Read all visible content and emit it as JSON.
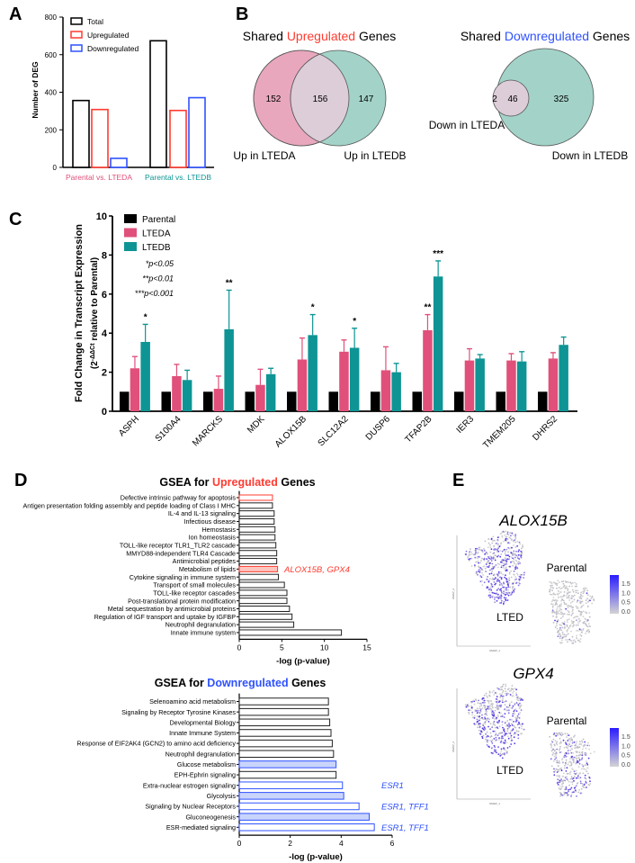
{
  "colors": {
    "red": "#ff3b30",
    "blue": "#2f52ff",
    "pink": "#e0507a",
    "teal": "#0e9494",
    "venn_pink": "#e8a7bd",
    "venn_teal": "#a3d3c8",
    "venn_overlap": "#dccdd8",
    "purple": "#5a3ee0",
    "gray": "#cfcfcf"
  },
  "panel_labels": [
    "A",
    "B",
    "C",
    "D",
    "E"
  ],
  "chart_data": [
    {
      "id": "A",
      "type": "bar",
      "title": "",
      "xlabel": "",
      "ylabel": "Number of DEG",
      "ylim": [
        0,
        800
      ],
      "yticks": [
        "0",
        "200",
        "400",
        "600",
        "800"
      ],
      "categories": [
        "Parental vs. LTEDA",
        "Parental vs. LTEDB"
      ],
      "series": [
        {
          "name": "Total",
          "values": [
            356,
            674
          ]
        },
        {
          "name": "Upregulated",
          "values": [
            308,
            303
          ]
        },
        {
          "name": "Downregulated",
          "values": [
            48,
            371
          ]
        }
      ]
    },
    {
      "id": "B",
      "type": "venn",
      "venns": [
        {
          "title_pre": "Shared ",
          "title_hl": "Upregulated",
          "title_post": " Genes",
          "set_a": "Up in LTEDA",
          "set_b": "Up in LTEDB",
          "only_a": "152",
          "both": "156",
          "only_b": "147"
        },
        {
          "title_pre": "Shared ",
          "title_hl": "Downregulated",
          "title_post": " Genes",
          "set_a": "Down in LTEDA",
          "set_b": "Down in LTEDB",
          "only_a": "2",
          "both": "46",
          "only_b": "325"
        }
      ]
    },
    {
      "id": "C",
      "type": "bar",
      "ylim": [
        0,
        10
      ],
      "yticks": [
        "0",
        "2",
        "4",
        "6",
        "8",
        "10"
      ],
      "ylabel": "Fold Change in Transcript Expression",
      "ylabel2_pre": "(2",
      "ylabel2_sup": "-ΔΔCt",
      "ylabel2_post": " relative to Parental)",
      "legend": [
        "Parental",
        "LTEDA",
        "LTEDB"
      ],
      "pnotes": [
        "*p<0.05",
        "**p<0.01",
        "***p<0.001"
      ],
      "categories": [
        "ASPH",
        "S100A4",
        "MARCKS",
        "MDK",
        "ALOX15B",
        "SLC12A2",
        "DUSP6",
        "TFAP2B",
        "IER3",
        "TMEM205",
        "DHRS2"
      ],
      "series": [
        {
          "name": "Parental",
          "values": [
            1,
            1,
            1,
            1,
            1,
            1,
            1,
            1,
            1,
            1,
            1
          ],
          "error": [
            0,
            0,
            0,
            0,
            0,
            0,
            0,
            0,
            0,
            0,
            0
          ],
          "sig": [
            "",
            "",
            "",
            "",
            "",
            "",
            "",
            "",
            "",
            "",
            ""
          ]
        },
        {
          "name": "LTEDA",
          "values": [
            2.2,
            1.8,
            1.15,
            1.35,
            2.65,
            3.05,
            2.1,
            4.15,
            2.6,
            2.6,
            2.7
          ],
          "error": [
            0.6,
            0.6,
            0.65,
            0.8,
            1.1,
            0.6,
            1.2,
            0.8,
            0.6,
            0.35,
            0.3
          ],
          "sig": [
            "",
            "",
            "",
            "",
            "",
            "",
            "",
            "**",
            "",
            "",
            ""
          ]
        },
        {
          "name": "LTEDB",
          "values": [
            3.55,
            1.6,
            4.2,
            1.9,
            3.9,
            3.25,
            2.0,
            6.9,
            2.7,
            2.55,
            3.4
          ],
          "error": [
            0.9,
            0.5,
            2.0,
            0.3,
            1.05,
            1.0,
            0.45,
            0.8,
            0.2,
            0.5,
            0.4
          ],
          "sig": [
            "*",
            "",
            "**",
            "",
            "*",
            "*",
            "",
            "***",
            "",
            "",
            ""
          ]
        }
      ]
    },
    {
      "id": "D-up",
      "type": "bar",
      "orientation": "horizontal",
      "title_pre": "GSEA for ",
      "title_hl": "Upregulated",
      "title_post": " Genes",
      "xlim": [
        0,
        15
      ],
      "xticks": [
        "0",
        "5",
        "10",
        "15"
      ],
      "xlabel": "-log (p-value)",
      "categories": [
        "Defective intrinsic pathway for apoptosis",
        "Antigen presentation folding assembly and peptide loading of Class I MHC",
        "IL-4 and IL-13 signaling",
        "Infectious disease",
        "Hemostasis",
        "Ion homeostasis",
        "TOLL-like receptor TLR1_TLR2 cascade",
        "MMYD88-independent TLR4 Cascade",
        "Antimicrobial peptides",
        "Metabolism of lipids",
        "Cytokine signaling in immune system",
        "Transport of small molecules",
        "TOLL-like receptor cascades",
        "Post-translational protein modification",
        "Metal sequestration by antimicrobial proteins",
        "Regulation of IGF transport and uptake by IGFBP",
        "Neutrophil degranulation",
        "Innate immune system"
      ],
      "values": [
        3.9,
        3.9,
        4.1,
        4.1,
        4.2,
        4.2,
        4.3,
        4.4,
        4.4,
        4.5,
        4.6,
        5.3,
        5.6,
        5.6,
        5.9,
        6.2,
        6.4,
        12.0
      ],
      "style": [
        "outline",
        "none",
        "none",
        "none",
        "none",
        "none",
        "none",
        "none",
        "none",
        "filled",
        "none",
        "none",
        "none",
        "none",
        "none",
        "none",
        "none",
        "none"
      ],
      "annotations": [
        "",
        "",
        "",
        "",
        "",
        "",
        "",
        "",
        "",
        "ALOX15B, GPX4",
        "",
        "",
        "",
        "",
        "",
        "",
        "",
        ""
      ]
    },
    {
      "id": "D-down",
      "type": "bar",
      "orientation": "horizontal",
      "title_pre": "GSEA for ",
      "title_hl": "Downregulated",
      "title_post": " Genes",
      "xlim": [
        0,
        6
      ],
      "xticks": [
        "0",
        "2",
        "4",
        "6"
      ],
      "xlabel": "-log (p-value)",
      "categories": [
        "Selenoamino acid metabolism",
        "Signaling by Receptor Tyrosine Kinases",
        "Developmental Biology",
        "Innate Immune System",
        "Response of EIF2AK4 (GCN2) to amino acid deficiency",
        "Neutrophil degranulation",
        "Glucose metabolism",
        "EPH-Ephrin signaling",
        "Extra-nuclear estrogen signaling",
        "Glycolysis",
        "Signaling by Nuclear Receptors",
        "Gluconeogenesis",
        "ESR-mediated signaling"
      ],
      "values": [
        3.5,
        3.5,
        3.55,
        3.6,
        3.65,
        3.7,
        3.8,
        3.8,
        4.05,
        4.1,
        4.7,
        5.1,
        5.3
      ],
      "style": [
        "none",
        "none",
        "none",
        "none",
        "none",
        "none",
        "filled",
        "none",
        "outline",
        "filled",
        "outline",
        "filled",
        "outline"
      ],
      "annotations": [
        "",
        "",
        "",
        "",
        "",
        "",
        "",
        "",
        "ESR1",
        "",
        "ESR1, TFF1",
        "",
        "ESR1, TFF1"
      ]
    },
    {
      "id": "E",
      "type": "scatter",
      "description_kind": "umap",
      "plots": [
        {
          "gene": "ALOX15B",
          "group_a": "LTED",
          "group_b": "Parental",
          "lted_high": 0.65,
          "parental_high": 0.05
        },
        {
          "gene": "GPX4",
          "group_a": "LTED",
          "group_b": "Parental",
          "lted_high": 0.6,
          "parental_high": 0.35
        }
      ],
      "colorbar_ticks": [
        "1.5",
        "1.0",
        "0.5",
        "0.0"
      ],
      "xlabel": "UMAP_1",
      "ylabel": "UMAP_2"
    }
  ]
}
